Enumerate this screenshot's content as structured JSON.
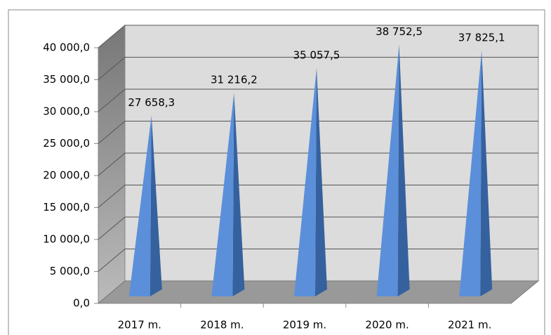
{
  "chart_data": {
    "type": "pyramid",
    "categories": [
      "2017 m.",
      "2018 m.",
      "2019 m.",
      "2020 m.",
      "2021 m."
    ],
    "values": [
      27658.3,
      31216.2,
      35057.5,
      38752.5,
      37825.1
    ],
    "value_labels": [
      "27 658,3",
      "31 216,2",
      "35 057,5",
      "38 752,5",
      "37 825,1"
    ],
    "color": "#5b8fd9",
    "ylim": [
      0,
      40000
    ],
    "yticks": [
      {
        "value": 0,
        "label": "0,0"
      },
      {
        "value": 5000,
        "label": "5 000,0"
      },
      {
        "value": 10000,
        "label": "10 000,0"
      },
      {
        "value": 15000,
        "label": "15 000,0"
      },
      {
        "value": 20000,
        "label": "20 000,0"
      },
      {
        "value": 25000,
        "label": "25 000,0"
      },
      {
        "value": 30000,
        "label": "30 000,0"
      },
      {
        "value": 35000,
        "label": "35 000,0"
      },
      {
        "value": 40000,
        "label": "40 000,0"
      }
    ],
    "grid": true
  }
}
